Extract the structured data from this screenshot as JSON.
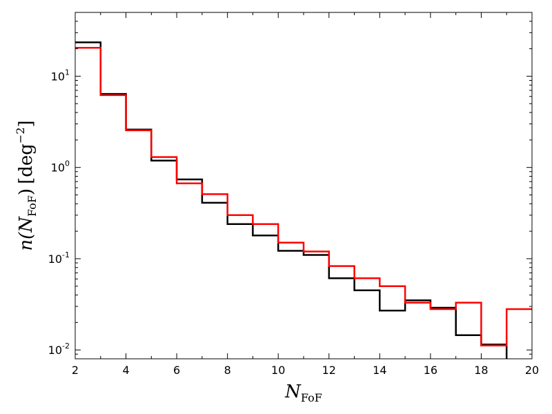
{
  "chart_data": {
    "type": "step",
    "title": "",
    "xlabel": {
      "base": "N",
      "subscript": "FoF"
    },
    "ylabel": {
      "func": "n(",
      "base": "N",
      "subscript": "FoF",
      "tail": ")",
      "unit": "[deg",
      "exponent": "−2",
      "close": "]"
    },
    "xlim": [
      2,
      20
    ],
    "ylim": [
      0.008,
      50
    ],
    "yscale": "log",
    "grid": false,
    "x_ticks": [
      {
        "value": 2,
        "label": "2"
      },
      {
        "value": 4,
        "label": "4"
      },
      {
        "value": 6,
        "label": "6"
      },
      {
        "value": 8,
        "label": "8"
      },
      {
        "value": 10,
        "label": "10"
      },
      {
        "value": 12,
        "label": "12"
      },
      {
        "value": 14,
        "label": "14"
      },
      {
        "value": 16,
        "label": "16"
      },
      {
        "value": 18,
        "label": "18"
      },
      {
        "value": 20,
        "label": "20"
      }
    ],
    "y_ticks": [
      {
        "value": 10,
        "base": "10",
        "exp": "1"
      },
      {
        "value": 1,
        "base": "10",
        "exp": "0"
      },
      {
        "value": 0.1,
        "base": "10",
        "exp": "-1"
      },
      {
        "value": 0.01,
        "base": "10",
        "exp": "-2"
      }
    ],
    "bin_edges": [
      2,
      3,
      4,
      5,
      6,
      7,
      8,
      9,
      10,
      11,
      12,
      13,
      14,
      15,
      16,
      17,
      18,
      19,
      20
    ],
    "series": [
      {
        "color": "#000000",
        "values": [
          23.5,
          6.4,
          2.6,
          1.19,
          0.74,
          0.41,
          0.24,
          0.18,
          0.122,
          0.11,
          0.061,
          0.045,
          0.027,
          0.035,
          0.029,
          0.0145,
          0.0115,
          0.005
        ]
      },
      {
        "color": "#ff0000",
        "values": [
          20.5,
          6.2,
          2.55,
          1.3,
          0.67,
          0.51,
          0.3,
          0.24,
          0.15,
          0.12,
          0.083,
          0.061,
          0.05,
          0.033,
          0.028,
          0.033,
          0.0112,
          0.028
        ]
      }
    ]
  }
}
